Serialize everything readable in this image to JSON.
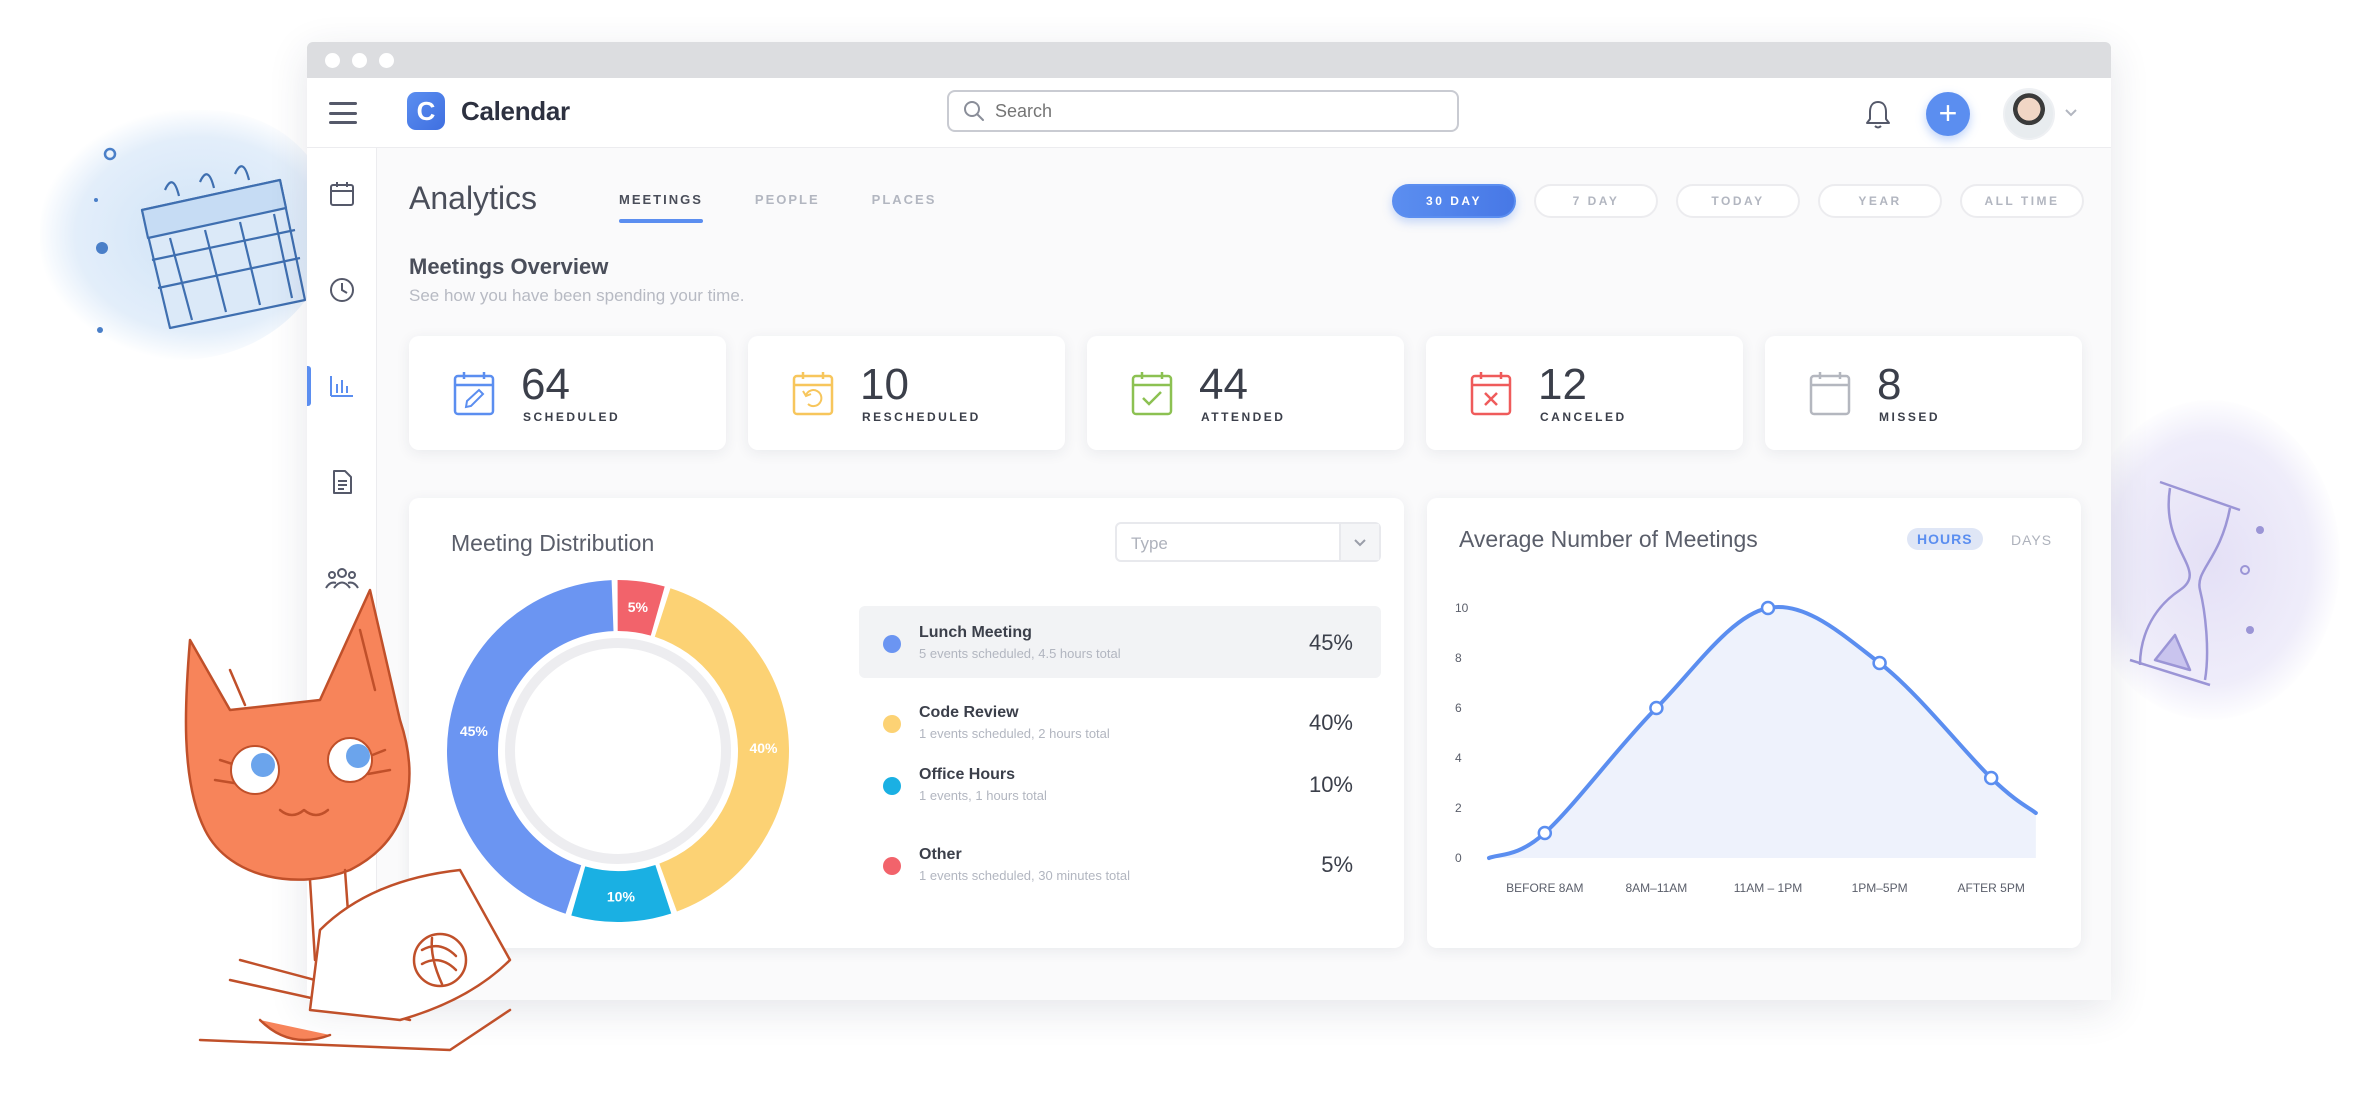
{
  "app": {
    "name": "Calendar",
    "logo_letter": "C"
  },
  "search": {
    "placeholder": "Search"
  },
  "sidebar": {
    "items": [
      "calendar-icon",
      "clock-icon",
      "analytics-icon",
      "document-icon",
      "people-icon"
    ],
    "active_index": 2
  },
  "header": {
    "title": "Analytics",
    "tabs": [
      {
        "label": "MEETINGS",
        "active": true
      },
      {
        "label": "PEOPLE",
        "active": false
      },
      {
        "label": "PLACES",
        "active": false
      }
    ],
    "ranges": [
      {
        "label": "30 DAY",
        "active": true
      },
      {
        "label": "7 DAY",
        "active": false
      },
      {
        "label": "TODAY",
        "active": false
      },
      {
        "label": "YEAR",
        "active": false
      },
      {
        "label": "ALL TIME",
        "active": false
      }
    ]
  },
  "overview": {
    "title": "Meetings Overview",
    "subtitle": "See how you have been spending your time.",
    "stats": [
      {
        "value": "64",
        "label": "SCHEDULED",
        "color": "#5b8ef0",
        "icon": "calendar-edit-icon"
      },
      {
        "value": "10",
        "label": "RESCHEDULED",
        "color": "#f7c65c",
        "icon": "calendar-reschedule-icon"
      },
      {
        "value": "44",
        "label": "ATTENDED",
        "color": "#8cc152",
        "icon": "calendar-check-icon"
      },
      {
        "value": "12",
        "label": "CANCELED",
        "color": "#ef5b5b",
        "icon": "calendar-cancel-icon"
      },
      {
        "value": "8",
        "label": "MISSED",
        "color": "#b4b7bf",
        "icon": "calendar-blank-icon"
      }
    ]
  },
  "distribution": {
    "title": "Meeting Distribution",
    "filter": {
      "value": "Type"
    },
    "items": [
      {
        "name": "Lunch Meeting",
        "desc": "5 events scheduled, 4.5 hours total",
        "pct": "45%",
        "value": 45,
        "color": "#6b95f2",
        "active": true
      },
      {
        "name": "Code Review",
        "desc": "1 events scheduled, 2 hours total",
        "pct": "40%",
        "value": 40,
        "color": "#fcd274"
      },
      {
        "name": "Office Hours",
        "desc": "1 events, 1 hours total",
        "pct": "10%",
        "value": 10,
        "color": "#1ab0e3"
      },
      {
        "name": "Other",
        "desc": "1 events scheduled, 30 minutes total",
        "pct": "5%",
        "value": 5,
        "color": "#f2636b"
      }
    ]
  },
  "average": {
    "title": "Average Number of Meetings",
    "toggles": [
      {
        "label": "HOURS",
        "active": true
      },
      {
        "label": "DAYS",
        "active": false
      }
    ]
  },
  "chart_data": {
    "type": "area",
    "categories": [
      "BEFORE 8AM",
      "8AM–11AM",
      "11AM – 1PM",
      "1PM–5PM",
      "AFTER 5PM"
    ],
    "y_ticks": [
      "0",
      "2",
      "4",
      "6",
      "8",
      "10"
    ],
    "ylim": [
      0,
      10
    ],
    "points": [
      {
        "x": 0.0,
        "y": 0
      },
      {
        "x": 0.5,
        "y": 1
      },
      {
        "x": 1.5,
        "y": 6
      },
      {
        "x": 2.5,
        "y": 10
      },
      {
        "x": 3.5,
        "y": 7.8
      },
      {
        "x": 4.5,
        "y": 3.2
      },
      {
        "x": 4.9,
        "y": 1.8
      }
    ],
    "markers": [
      1,
      2,
      3,
      4,
      5
    ],
    "color": "#5b8ef0",
    "fill": "#eef2fc"
  }
}
